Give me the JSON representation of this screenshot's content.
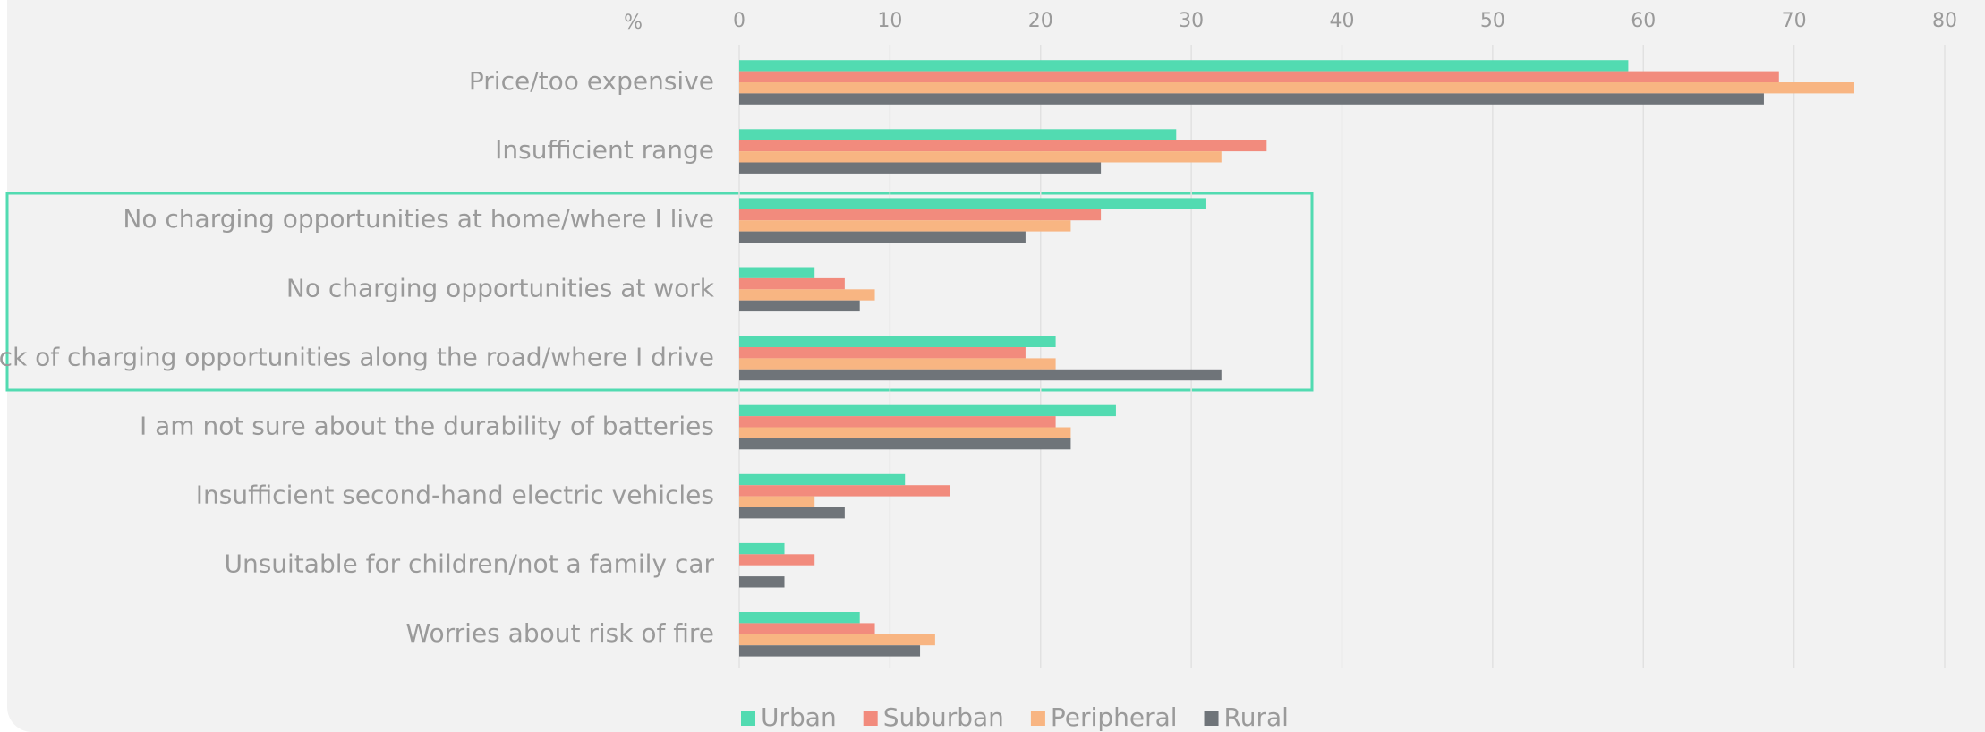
{
  "chart_data": {
    "type": "barh",
    "xlabel": "%",
    "categories": [
      "Price/too expensive",
      "Insufficient range",
      "No charging opportunities at home/where I live",
      "No charging opportunities at work",
      "Lack of charging opportunities along the road/where I drive",
      "I am not sure about the durability of batteries",
      "Insufficient second-hand electric vehicles",
      "Unsuitable for children/not a family car",
      "Worries about risk of fire"
    ],
    "series": [
      {
        "name": "Urban",
        "color": "#52dbb1",
        "values": [
          59,
          29,
          31,
          5,
          21,
          25,
          11,
          3,
          8
        ]
      },
      {
        "name": "Suburban",
        "color": "#f28b7d",
        "values": [
          69,
          35,
          24,
          7,
          19,
          21,
          14,
          5,
          9
        ]
      },
      {
        "name": "Peripheral",
        "color": "#f8b582",
        "values": [
          74,
          32,
          22,
          9,
          21,
          22,
          5,
          0,
          13
        ]
      },
      {
        "name": "Rural",
        "color": "#6f7479",
        "values": [
          68,
          24,
          19,
          8,
          32,
          22,
          7,
          3,
          12
        ]
      }
    ],
    "xlim": [
      0,
      80
    ],
    "xticks": [
      0,
      10,
      20,
      30,
      40,
      50,
      60,
      70,
      80
    ],
    "grid": true,
    "legend": "bottom"
  }
}
